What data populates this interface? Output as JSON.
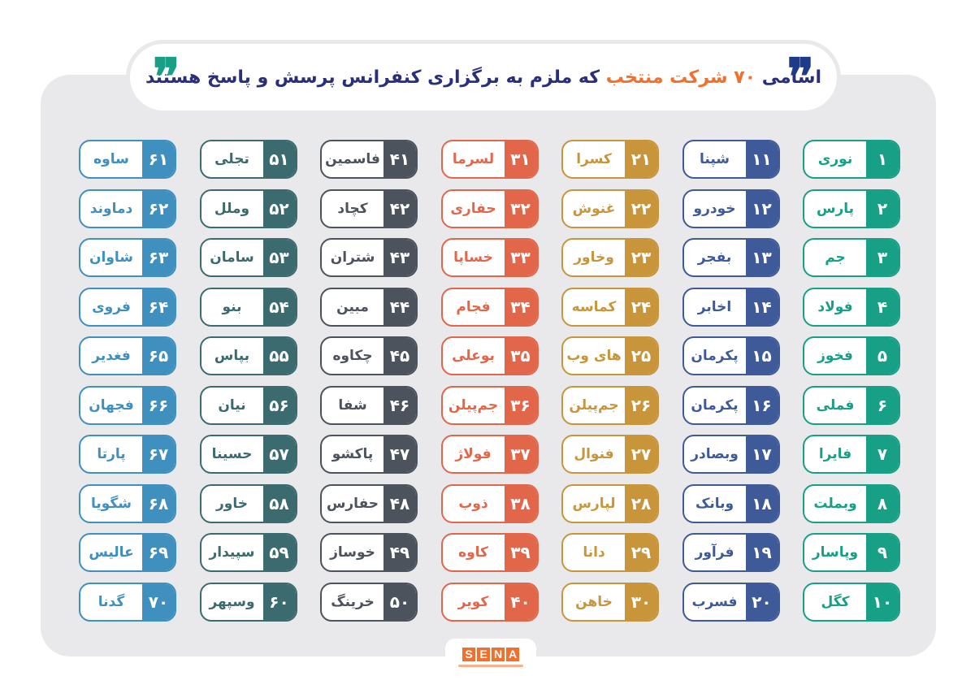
{
  "header": {
    "title_before": "اسامی",
    "title_highlight": "۷۰ شرکت منتخب",
    "title_after": "که ملزم به برگزاری کنفرانس پرسش و پاسخ هستند",
    "quote_right": "❞",
    "quote_left": "❞"
  },
  "logo": {
    "letters": [
      "S",
      "E",
      "N",
      "A"
    ]
  },
  "columns": [
    {
      "color": "#17a085",
      "items": [
        {
          "n": "۱",
          "name": "نوری"
        },
        {
          "n": "۲",
          "name": "پارس"
        },
        {
          "n": "۳",
          "name": "جم"
        },
        {
          "n": "۴",
          "name": "فولاد"
        },
        {
          "n": "۵",
          "name": "فخوز"
        },
        {
          "n": "۶",
          "name": "فملی"
        },
        {
          "n": "۷",
          "name": "فایرا"
        },
        {
          "n": "۸",
          "name": "وبملت"
        },
        {
          "n": "۹",
          "name": "وپاسار"
        },
        {
          "n": "۱۰",
          "name": "کگل"
        }
      ]
    },
    {
      "color": "#3e5a99",
      "items": [
        {
          "n": "۱۱",
          "name": "شپنا"
        },
        {
          "n": "۱۲",
          "name": "خودرو"
        },
        {
          "n": "۱۳",
          "name": "بفجر"
        },
        {
          "n": "۱۴",
          "name": "اخابر"
        },
        {
          "n": "۱۵",
          "name": "پکرمان"
        },
        {
          "n": "۱۶",
          "name": "پکرمان"
        },
        {
          "n": "۱۷",
          "name": "وبصادر"
        },
        {
          "n": "۱۸",
          "name": "وبانک"
        },
        {
          "n": "۱۹",
          "name": "فرآور"
        },
        {
          "n": "۲۰",
          "name": "فسرب"
        }
      ]
    },
    {
      "color": "#c8953b",
      "items": [
        {
          "n": "۲۱",
          "name": "کسرا"
        },
        {
          "n": "۲۲",
          "name": "غنوش"
        },
        {
          "n": "۲۳",
          "name": "وخاور"
        },
        {
          "n": "۲۴",
          "name": "کماسه"
        },
        {
          "n": "۲۵",
          "name": "های وب"
        },
        {
          "n": "۲۶",
          "name": "جم‌پیلن"
        },
        {
          "n": "۲۷",
          "name": "فنوال"
        },
        {
          "n": "۲۸",
          "name": "لپارس"
        },
        {
          "n": "۲۹",
          "name": "دانا"
        },
        {
          "n": "۳۰",
          "name": "خاهن"
        }
      ]
    },
    {
      "color": "#e2664a",
      "items": [
        {
          "n": "۳۱",
          "name": "لسرما"
        },
        {
          "n": "۳۲",
          "name": "حفاری"
        },
        {
          "n": "۳۳",
          "name": "خساپا"
        },
        {
          "n": "۳۴",
          "name": "فجام"
        },
        {
          "n": "۳۵",
          "name": "بوعلی"
        },
        {
          "n": "۳۶",
          "name": "جم‌پیلن"
        },
        {
          "n": "۳۷",
          "name": "فولاژ"
        },
        {
          "n": "۳۸",
          "name": "ذوب"
        },
        {
          "n": "۳۹",
          "name": "کاوه"
        },
        {
          "n": "۴۰",
          "name": "کویر"
        }
      ]
    },
    {
      "color": "#4d535c",
      "items": [
        {
          "n": "۴۱",
          "name": "فاسمین"
        },
        {
          "n": "۴۲",
          "name": "کچاد"
        },
        {
          "n": "۴۳",
          "name": "شتران"
        },
        {
          "n": "۴۴",
          "name": "مبین"
        },
        {
          "n": "۴۵",
          "name": "چکاوه"
        },
        {
          "n": "۴۶",
          "name": "شفا"
        },
        {
          "n": "۴۷",
          "name": "پاکشو"
        },
        {
          "n": "۴۸",
          "name": "حفارس"
        },
        {
          "n": "۴۹",
          "name": "خوساز"
        },
        {
          "n": "۵۰",
          "name": "خرینگ"
        }
      ]
    },
    {
      "color": "#3b6b6e",
      "items": [
        {
          "n": "۵۱",
          "name": "تجلی"
        },
        {
          "n": "۵۲",
          "name": "وملل"
        },
        {
          "n": "۵۳",
          "name": "سامان"
        },
        {
          "n": "۵۴",
          "name": "بنو"
        },
        {
          "n": "۵۵",
          "name": "بپاس"
        },
        {
          "n": "۵۶",
          "name": "نیان"
        },
        {
          "n": "۵۷",
          "name": "حسینا"
        },
        {
          "n": "۵۸",
          "name": "خاور"
        },
        {
          "n": "۵۹",
          "name": "سپیدار"
        },
        {
          "n": "۶۰",
          "name": "وسپهر"
        }
      ]
    },
    {
      "color": "#3f8fbf",
      "items": [
        {
          "n": "۶۱",
          "name": "ساوه"
        },
        {
          "n": "۶۲",
          "name": "دماوند"
        },
        {
          "n": "۶۳",
          "name": "شاوان"
        },
        {
          "n": "۶۴",
          "name": "فروی"
        },
        {
          "n": "۶۵",
          "name": "فغدیر"
        },
        {
          "n": "۶۶",
          "name": "فجهان"
        },
        {
          "n": "۶۷",
          "name": "پارتا"
        },
        {
          "n": "۶۸",
          "name": "شگویا"
        },
        {
          "n": "۶۹",
          "name": "عالیس"
        },
        {
          "n": "۷۰",
          "name": "گدنا"
        }
      ]
    }
  ]
}
